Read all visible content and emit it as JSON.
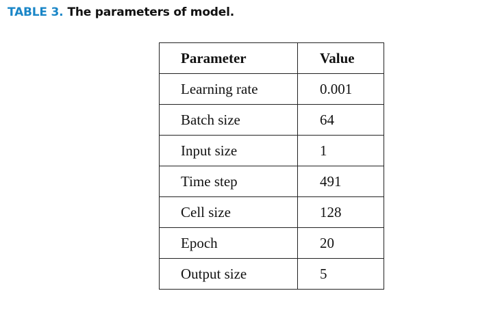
{
  "caption": {
    "label": "TABLE 3.",
    "title": "The parameters of model."
  },
  "table": {
    "headers": [
      "Parameter",
      "Value"
    ],
    "rows": [
      {
        "parameter": "Learning rate",
        "value": "0.001"
      },
      {
        "parameter": "Batch size",
        "value": "64"
      },
      {
        "parameter": "Input size",
        "value": "1"
      },
      {
        "parameter": "Time step",
        "value": "491"
      },
      {
        "parameter": "Cell size",
        "value": "128"
      },
      {
        "parameter": "Epoch",
        "value": "20"
      },
      {
        "parameter": "Output size",
        "value": "5"
      }
    ]
  },
  "colors": {
    "caption_label": "#1a86c7",
    "text": "#111111",
    "border": "#222222"
  }
}
